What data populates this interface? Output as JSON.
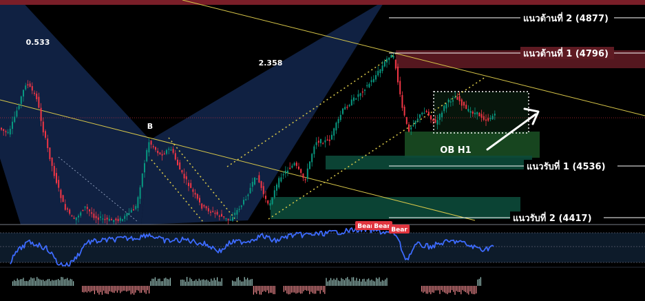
{
  "chart_data": {
    "type": "candlestick",
    "title": "",
    "price_range": [
      4395,
      4905
    ],
    "levels": [
      {
        "name": "แนวต้านที่ 2 (4877)",
        "price": 4877,
        "kind": "resistance"
      },
      {
        "name": "แนวต้านที่ 1 (4796)",
        "price": 4796,
        "kind": "resistance"
      },
      {
        "name": "แนวรับที่ 1 (4536)",
        "price": 4536,
        "kind": "support"
      },
      {
        "name": "แนวรับที่ 2 (4417)",
        "price": 4417,
        "kind": "support"
      }
    ],
    "annotations": {
      "ob_label": "OB H1",
      "point_b": "B",
      "ratios": [
        "0.533",
        "2.358"
      ],
      "bear_labels": [
        "Bear",
        "Bear",
        "Bear"
      ]
    },
    "colors": {
      "up": "#089981",
      "down": "#f23645",
      "resistance_zone": "#5e1a22",
      "support_zone": "#0c4a3a",
      "pattern": "#1e3c78",
      "trendline": "#d9c84a",
      "rsi": "#3d6bff",
      "bear_badge": "#e0353f"
    },
    "rsi_panel": true,
    "volume_panel": true
  }
}
